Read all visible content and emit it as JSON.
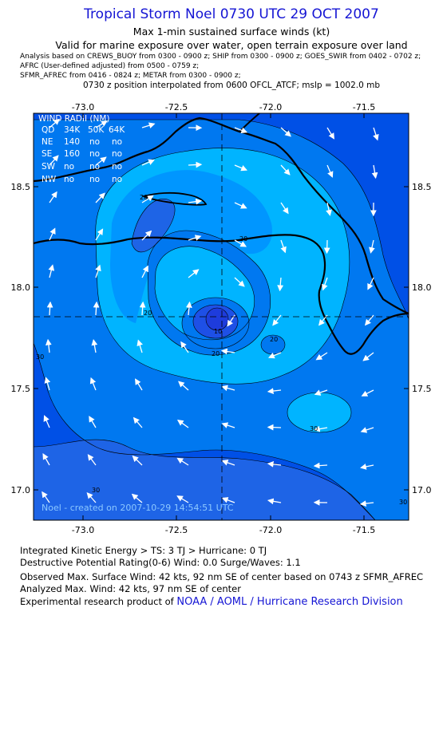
{
  "header": {
    "title": "Tropical Storm Noel 0730 UTC 29 OCT 2007",
    "subtitle1": "Max 1-min sustained surface winds (kt)",
    "subtitle2": "Valid for marine exposure over water, open terrain exposure over land",
    "analysis_line1": "Analysis based on  CREWS_BUOY from 0300 - 0900 z;  SHIP from 0300 - 0900 z;  GOES_SWIR from 0402 - 0702 z;",
    "analysis_line2": "AFRC (User-defined adjusted) from 0500 - 0759 z;",
    "analysis_line3": "SFMR_AFREC from 0416 - 0824 z;  METAR from 0300 - 0900 z;",
    "position_line": "0730 z position interpolated from 0600 OFCL_ATCF; mslp = 1002.0 mb"
  },
  "map": {
    "lon_ticks": [
      "-73.0",
      "-72.5",
      "-72.0",
      "-71.5"
    ],
    "lat_ticks": [
      "18.5",
      "18.0",
      "17.5",
      "17.0"
    ],
    "storm_center": {
      "lon": -72.25,
      "lat": 17.85
    },
    "contour_labels": [
      "20",
      "20",
      "20",
      "20",
      "30",
      "30",
      "30",
      "30",
      "20",
      "10"
    ],
    "wind_radii_table": {
      "title": "WIND RADII (NM)",
      "header": [
        "QD",
        "34K",
        "50K",
        "64K"
      ],
      "rows": [
        [
          "NE",
          "140",
          "no",
          "no"
        ],
        [
          "SE",
          "160",
          "no",
          "no"
        ],
        [
          "SW",
          "no",
          "no",
          "no"
        ],
        [
          "NW",
          "no",
          "no",
          "no"
        ]
      ]
    },
    "credit": "Noel - created on 2007-10-29 14:54:51 UTC",
    "colors": {
      "lt20": "#0096ff",
      "c20_30": "#00b4ff",
      "c30_40": "#0050e6",
      "c40_50": "#1e3cdc",
      "land_line": "#000000"
    }
  },
  "footer": {
    "ike": "Integrated Kinetic Energy > TS: 3 TJ   > Hurricane: 0 TJ",
    "dpr": "Destructive Potential Rating(0-6)   Wind: 0.0 Surge/Waves: 1.1",
    "observed": "Observed Max. Surface Wind: 42 kts, 92 nm SE of center based on 0743 z SFMR_AFREC",
    "analyzed": "Analyzed Max. Wind: 42 kts, 97 nm SE of center",
    "experimental_prefix": "Experimental research product of ",
    "experimental_org": "NOAA / AOML / Hurricane Research Division"
  }
}
